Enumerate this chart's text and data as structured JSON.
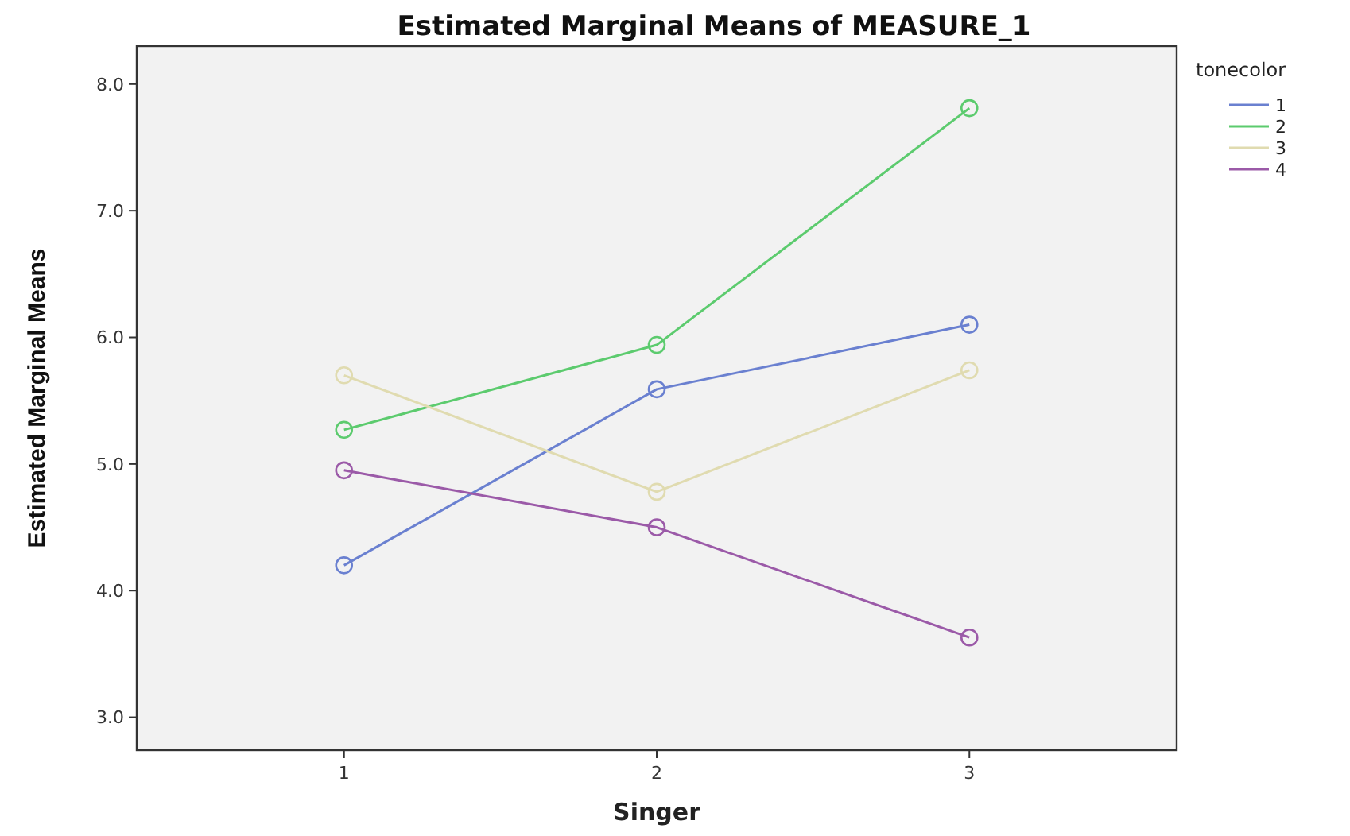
{
  "chart_data": {
    "type": "line",
    "title": "Estimated Marginal Means of MEASURE_1",
    "xlabel": "Singer",
    "ylabel": "Estimated Marginal Means",
    "legend_title": "tonecolor",
    "categories": [
      "1",
      "2",
      "3"
    ],
    "series": [
      {
        "name": "1",
        "color": "#6a80d0",
        "values": [
          4.2,
          5.59,
          6.1
        ]
      },
      {
        "name": "2",
        "color": "#5ccb6e",
        "values": [
          5.27,
          5.94,
          7.81
        ]
      },
      {
        "name": "3",
        "color": "#e0dbb0",
        "values": [
          5.7,
          4.78,
          5.74
        ]
      },
      {
        "name": "4",
        "color": "#9b5aa8",
        "values": [
          4.95,
          4.5,
          3.63
        ]
      }
    ],
    "ylim": [
      2.74,
      8.3
    ],
    "yticks": [
      {
        "value": 3,
        "label": "3.0"
      },
      {
        "value": 4,
        "label": "4.0"
      },
      {
        "value": 5,
        "label": "5.0"
      },
      {
        "value": 6,
        "label": "6.0"
      },
      {
        "value": 7,
        "label": "7.0"
      },
      {
        "value": 8,
        "label": "8.0"
      }
    ],
    "legend": "right",
    "marker": "circle",
    "grid": false
  }
}
